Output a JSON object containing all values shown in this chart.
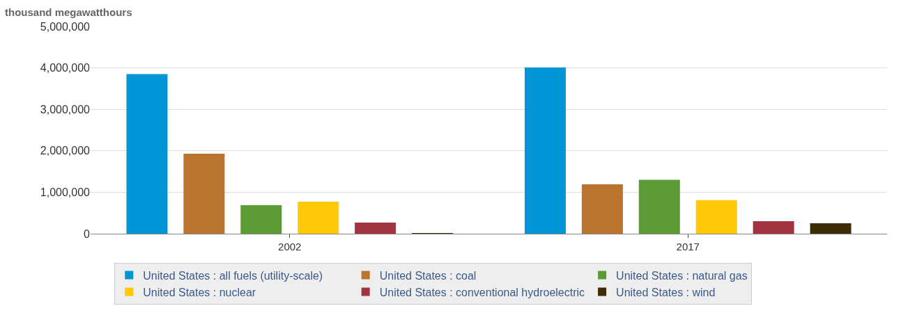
{
  "chart_data": {
    "type": "bar",
    "ylabel": "thousand megawatthours",
    "categories": [
      "2002",
      "2017"
    ],
    "series": [
      {
        "name": "United States : all fuels (utility-scale)",
        "color": "#0096d6",
        "values": [
          3850000,
          4010000
        ]
      },
      {
        "name": "United States : coal",
        "color": "#bb742e",
        "values": [
          1930000,
          1190000
        ]
      },
      {
        "name": "United States : natural gas",
        "color": "#5b9a34",
        "values": [
          690000,
          1300000
        ]
      },
      {
        "name": "United States : nuclear",
        "color": "#ffc90a",
        "values": [
          770000,
          810000
        ]
      },
      {
        "name": "United States : conventional hydroelectric",
        "color": "#a33340",
        "values": [
          270000,
          300000
        ]
      },
      {
        "name": "United States : wind",
        "color": "#3d2c05",
        "values": [
          10000,
          250000
        ]
      }
    ],
    "ylim": [
      0,
      5000000
    ],
    "yticks": [
      {
        "value": 0,
        "label": "0"
      },
      {
        "value": 1000000,
        "label": "1,000,000"
      },
      {
        "value": 2000000,
        "label": "2,000,000"
      },
      {
        "value": 3000000,
        "label": "3,000,000"
      },
      {
        "value": 4000000,
        "label": "4,000,000"
      },
      {
        "value": 5000000,
        "label": "5,000,000"
      }
    ],
    "grid": "y",
    "legend": "bottom"
  }
}
